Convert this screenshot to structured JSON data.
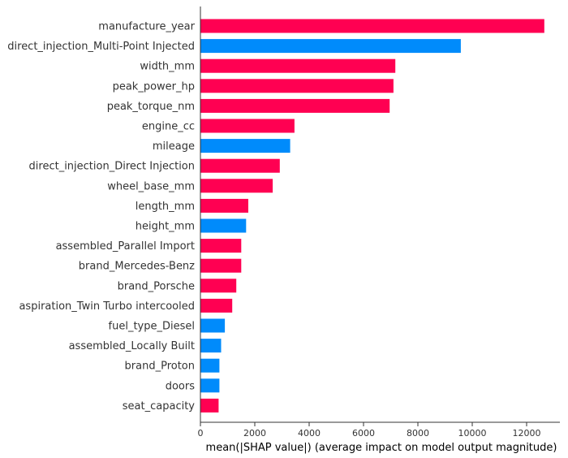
{
  "chart_data": {
    "type": "bar",
    "orientation": "horizontal",
    "xlabel": "mean(|SHAP value|) (average impact on model output magnitude)",
    "ylabel": "",
    "xlim": [
      0,
      13300
    ],
    "xticks": [
      0,
      2000,
      4000,
      6000,
      8000,
      10000,
      12000
    ],
    "grid": false,
    "categories": [
      "manufacture_year",
      "direct_injection_Multi-Point Injected",
      "width_mm",
      "peak_power_hp",
      "peak_torque_nm",
      "engine_cc",
      "mileage",
      "direct_injection_Direct Injection",
      "wheel_base_mm",
      "length_mm",
      "height_mm",
      "assembled_Parallel Import",
      "brand_Mercedes-Benz",
      "brand_Porsche",
      "aspiration_Twin Turbo intercooled",
      "fuel_type_Diesel",
      "assembled_Locally Built",
      "brand_Proton",
      "doors",
      "seat_capacity"
    ],
    "values": [
      12650,
      9580,
      7170,
      7100,
      6960,
      3460,
      3300,
      2920,
      2660,
      1760,
      1680,
      1500,
      1500,
      1320,
      1170,
      900,
      760,
      700,
      700,
      670
    ],
    "colors": [
      "#ff0052",
      "#008bfb",
      "#ff0052",
      "#ff0052",
      "#ff0052",
      "#ff0052",
      "#008bfb",
      "#ff0052",
      "#ff0052",
      "#ff0052",
      "#008bfb",
      "#ff0052",
      "#ff0052",
      "#ff0052",
      "#ff0052",
      "#008bfb",
      "#008bfb",
      "#008bfb",
      "#008bfb",
      "#ff0052"
    ]
  }
}
